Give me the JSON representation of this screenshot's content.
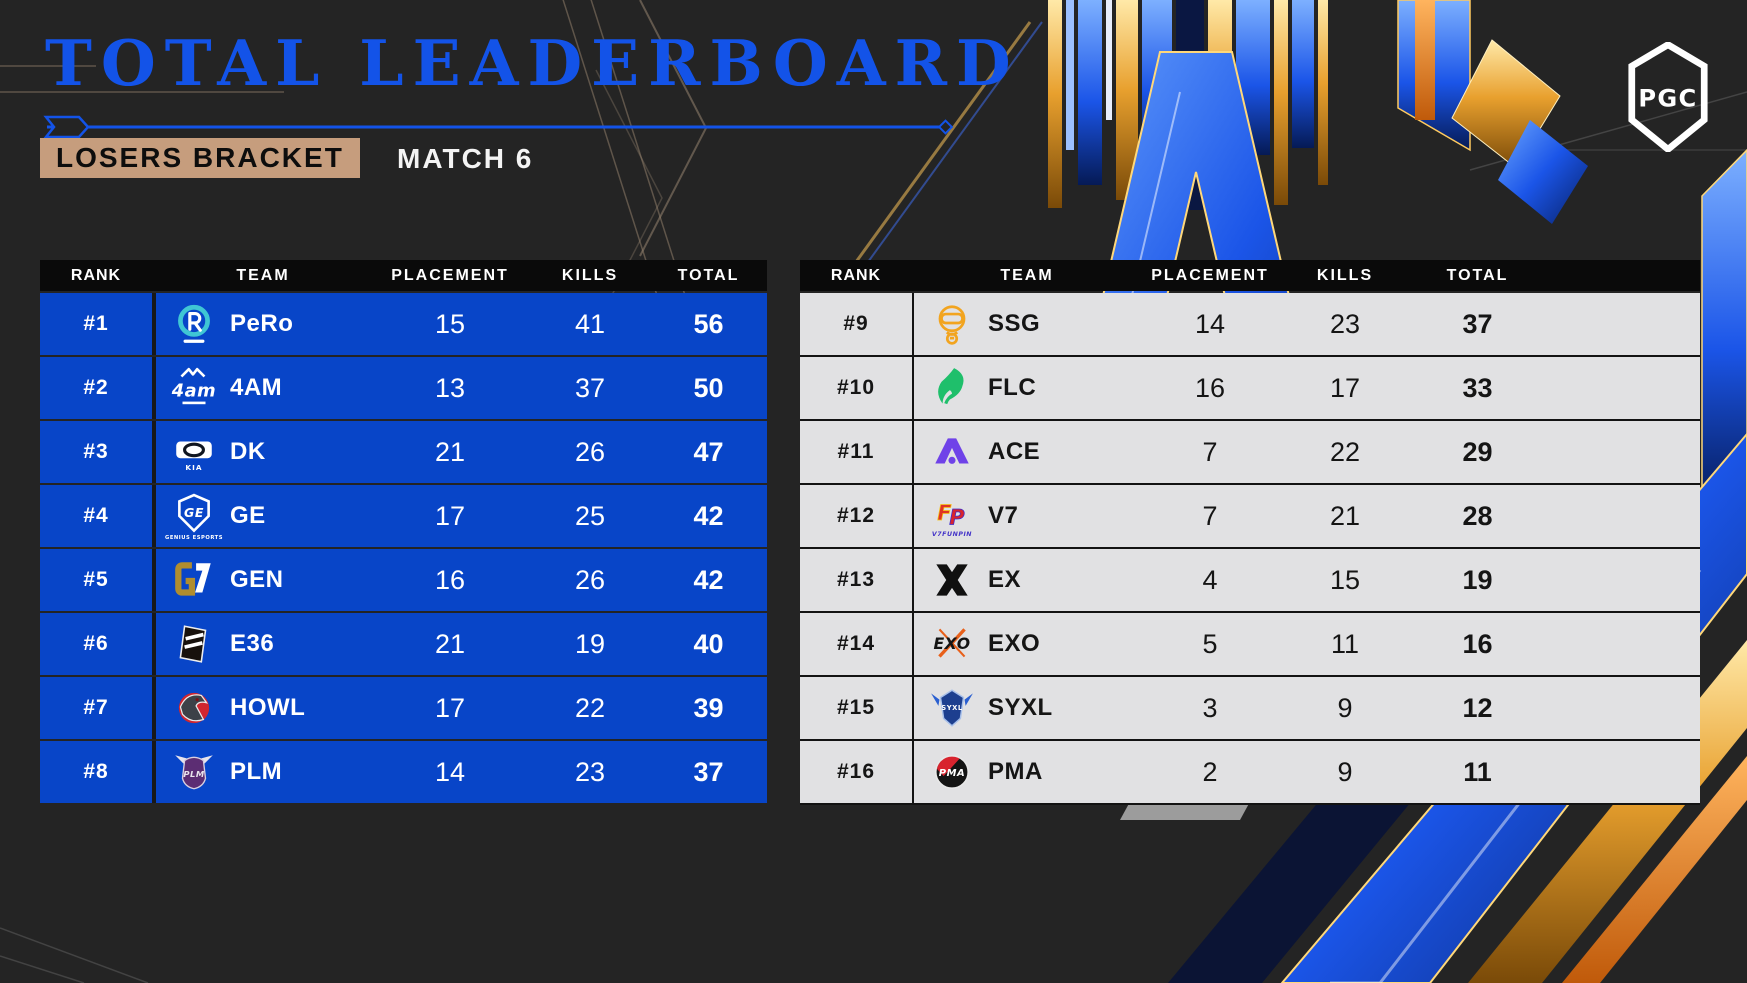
{
  "page": {
    "title": "TOTAL LEADERBOARD",
    "bracket": "LOSERS BRACKET",
    "match": "MATCH 6",
    "org": "PGC"
  },
  "columns": {
    "rank": "RANK",
    "team": "TEAM",
    "placement": "PLACEMENT",
    "kills": "KILLS",
    "total": "TOTAL"
  },
  "colors": {
    "row_blue": "#0845c8",
    "title_blue": "#1353e8",
    "badge_tan": "#c69d7d",
    "header_black": "#0a0a0a",
    "row_light": "#f3f3f5",
    "background": "#242424"
  },
  "tables": {
    "left": {
      "rows": [
        {
          "rank": "#1",
          "team": "PeRo",
          "logo": "pero-logo",
          "placement": "15",
          "kills": "41",
          "total": "56"
        },
        {
          "rank": "#2",
          "team": "4AM",
          "logo": "4am-logo",
          "placement": "13",
          "kills": "37",
          "total": "50"
        },
        {
          "rank": "#3",
          "team": "DK",
          "logo": "dk-logo",
          "placement": "21",
          "kills": "26",
          "total": "47"
        },
        {
          "rank": "#4",
          "team": "GE",
          "logo": "ge-logo",
          "placement": "17",
          "kills": "25",
          "total": "42"
        },
        {
          "rank": "#5",
          "team": "GEN",
          "logo": "gen-logo",
          "placement": "16",
          "kills": "26",
          "total": "42"
        },
        {
          "rank": "#6",
          "team": "E36",
          "logo": "e36-logo",
          "placement": "21",
          "kills": "19",
          "total": "40"
        },
        {
          "rank": "#7",
          "team": "HOWL",
          "logo": "howl-logo",
          "placement": "17",
          "kills": "22",
          "total": "39"
        },
        {
          "rank": "#8",
          "team": "PLM",
          "logo": "plm-logo",
          "placement": "14",
          "kills": "23",
          "total": "37"
        }
      ]
    },
    "right": {
      "rows": [
        {
          "rank": "#9",
          "team": "SSG",
          "logo": "ssg-logo",
          "placement": "14",
          "kills": "23",
          "total": "37"
        },
        {
          "rank": "#10",
          "team": "FLC",
          "logo": "flc-logo",
          "placement": "16",
          "kills": "17",
          "total": "33"
        },
        {
          "rank": "#11",
          "team": "ACE",
          "logo": "ace-logo",
          "placement": "7",
          "kills": "22",
          "total": "29"
        },
        {
          "rank": "#12",
          "team": "V7",
          "logo": "v7-logo",
          "placement": "7",
          "kills": "21",
          "total": "28"
        },
        {
          "rank": "#13",
          "team": "EX",
          "logo": "ex-logo",
          "placement": "4",
          "kills": "15",
          "total": "19"
        },
        {
          "rank": "#14",
          "team": "EXO",
          "logo": "exo-logo",
          "placement": "5",
          "kills": "11",
          "total": "16"
        },
        {
          "rank": "#15",
          "team": "SYXL",
          "logo": "syxl-logo",
          "placement": "3",
          "kills": "9",
          "total": "12"
        },
        {
          "rank": "#16",
          "team": "PMA",
          "logo": "pma-logo",
          "placement": "2",
          "kills": "9",
          "total": "11"
        }
      ]
    }
  },
  "logo_captions": {
    "dk": "KIA",
    "ge": "GENIUS ESPORTS",
    "v7": "V7FUNPIN"
  }
}
